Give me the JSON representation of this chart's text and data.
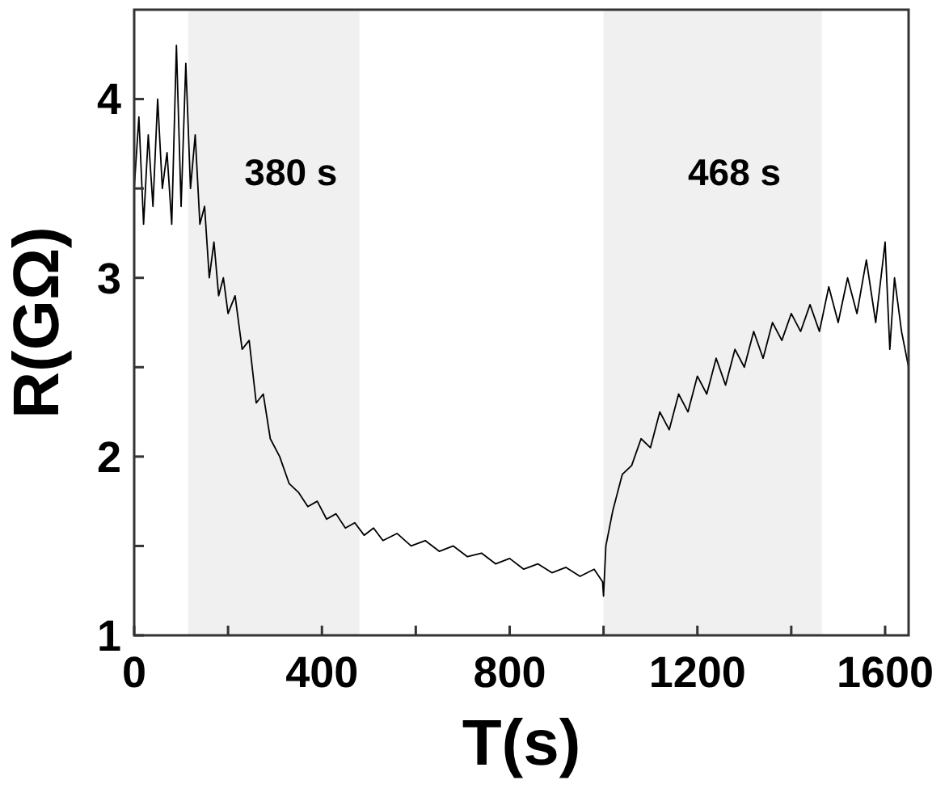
{
  "chart_data": {
    "type": "line",
    "xlabel": "T(s)",
    "ylabel": "R(GΩ)",
    "xlim": [
      0,
      1650
    ],
    "xticks": [
      0,
      {
        "value": 200,
        "label": null
      },
      400,
      {
        "value": 600,
        "label": null
      },
      800,
      {
        "value": 1000,
        "label": null
      },
      1200,
      {
        "value": 1400,
        "label": null
      },
      1600
    ],
    "ylim": [
      1,
      4.5
    ],
    "yticks": [
      1,
      {
        "value": 1.5,
        "label": null
      },
      2,
      {
        "value": 2.5,
        "label": null
      },
      3,
      {
        "value": 3.5,
        "label": null
      },
      4
    ],
    "bands": [
      {
        "axis": "x",
        "from": 115,
        "to": 480,
        "label": "380 s",
        "color": "#f0f0f0"
      },
      {
        "axis": "x",
        "from": 1000,
        "to": 1465,
        "label": "468 s",
        "color": "#f0f0f0"
      }
    ],
    "series": [
      {
        "color": "#000000",
        "x": [
          0,
          10,
          20,
          30,
          40,
          50,
          60,
          70,
          80,
          90,
          100,
          110,
          120,
          130,
          140,
          150,
          160,
          170,
          180,
          190,
          200,
          215,
          230,
          245,
          260,
          275,
          290,
          310,
          330,
          350,
          370,
          390,
          410,
          430,
          450,
          470,
          490,
          510,
          530,
          560,
          590,
          620,
          650,
          680,
          710,
          740,
          770,
          800,
          830,
          860,
          890,
          920,
          950,
          980,
          998,
          1000,
          1005,
          1020,
          1040,
          1060,
          1080,
          1100,
          1120,
          1140,
          1160,
          1180,
          1200,
          1220,
          1240,
          1260,
          1280,
          1300,
          1320,
          1340,
          1360,
          1380,
          1400,
          1420,
          1440,
          1460,
          1480,
          1500,
          1520,
          1540,
          1560,
          1580,
          1600,
          1610,
          1620,
          1635,
          1650
        ],
        "values": [
          3.5,
          3.9,
          3.3,
          3.8,
          3.4,
          4.0,
          3.5,
          3.7,
          3.3,
          4.3,
          3.4,
          4.2,
          3.5,
          3.8,
          3.3,
          3.4,
          3.0,
          3.2,
          2.9,
          3.0,
          2.8,
          2.9,
          2.6,
          2.65,
          2.3,
          2.35,
          2.1,
          2.0,
          1.85,
          1.8,
          1.72,
          1.75,
          1.65,
          1.68,
          1.6,
          1.63,
          1.56,
          1.6,
          1.53,
          1.57,
          1.5,
          1.53,
          1.47,
          1.5,
          1.44,
          1.46,
          1.4,
          1.43,
          1.37,
          1.4,
          1.35,
          1.38,
          1.33,
          1.37,
          1.3,
          1.22,
          1.5,
          1.7,
          1.9,
          1.95,
          2.1,
          2.05,
          2.25,
          2.15,
          2.35,
          2.25,
          2.45,
          2.35,
          2.55,
          2.4,
          2.6,
          2.5,
          2.7,
          2.55,
          2.75,
          2.65,
          2.8,
          2.7,
          2.85,
          2.7,
          2.95,
          2.75,
          3.0,
          2.8,
          3.1,
          2.75,
          3.2,
          2.6,
          3.0,
          2.7,
          2.5
        ]
      }
    ]
  }
}
